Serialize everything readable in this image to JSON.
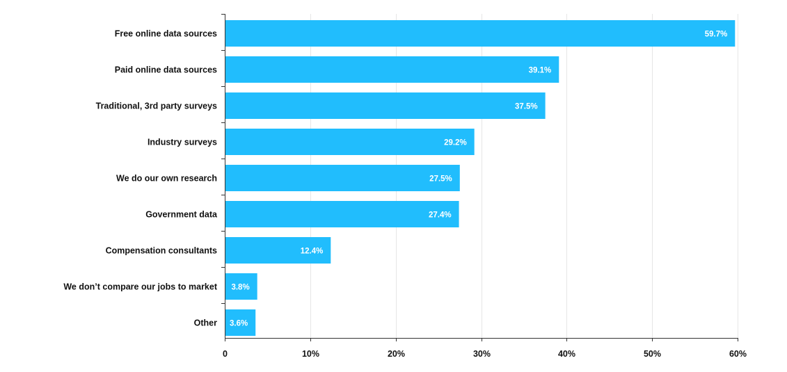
{
  "chart_data": {
    "type": "bar",
    "orientation": "horizontal",
    "categories": [
      "Free online data sources",
      "Paid online data sources",
      "Traditional, 3rd party surveys",
      "Industry surveys",
      "We do our own research",
      "Government data",
      "Compensation consultants",
      "We don’t compare our jobs to market",
      "Other"
    ],
    "values": [
      59.7,
      39.1,
      37.5,
      29.2,
      27.5,
      27.4,
      12.4,
      3.8,
      3.6
    ],
    "value_labels": [
      "59.7%",
      "39.1%",
      "37.5%",
      "29.2%",
      "27.5%",
      "27.4%",
      "12.4%",
      "3.8%",
      "3.6%"
    ],
    "xlim": [
      0,
      60
    ],
    "xticks": [
      0,
      10,
      20,
      30,
      40,
      50,
      60
    ],
    "xtick_labels": [
      "0",
      "10%",
      "20%",
      "30%",
      "40%",
      "50%",
      "60%"
    ],
    "grid": true,
    "title": "",
    "xlabel": "",
    "ylabel": ""
  },
  "colors": {
    "bar": "#21bdfd",
    "data_label": "#ffffff",
    "text": "#111111"
  }
}
